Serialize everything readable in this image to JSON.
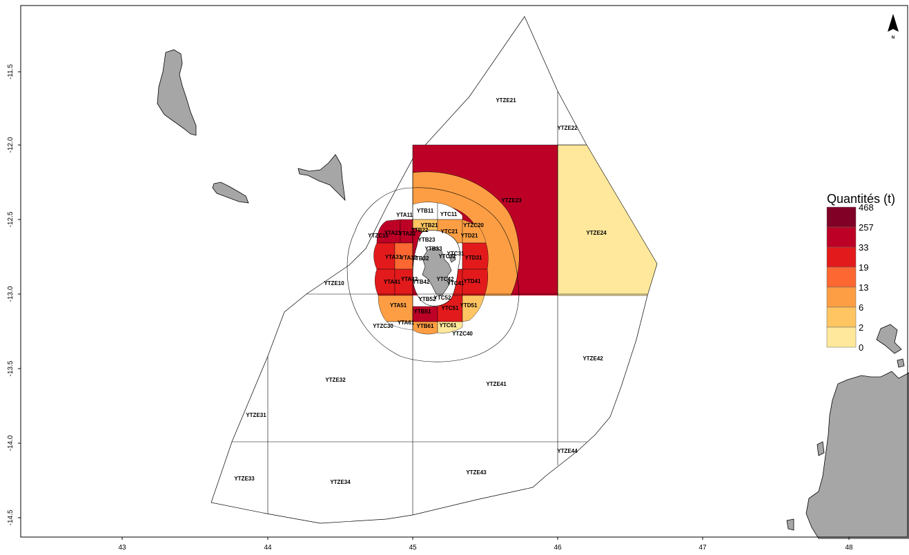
{
  "axes": {
    "x_ticks": [
      "43",
      "44",
      "45",
      "46",
      "47",
      "48"
    ],
    "y_ticks": [
      "-11.5",
      "-12.0",
      "-12.5",
      "-13.0",
      "-13.5",
      "-14.0",
      "-14.5"
    ]
  },
  "north_arrow": {
    "label": "N",
    "icon": "north-arrow-icon"
  },
  "legend": {
    "title": "Quantités (t)",
    "breaks": [
      "468",
      "257",
      "33",
      "19",
      "13",
      "6",
      "2",
      "0"
    ],
    "colors": [
      "#800026",
      "#bd0026",
      "#e31a1c",
      "#fc6732",
      "#fd9e44",
      "#fec562",
      "#ffe89b"
    ]
  },
  "zones": {
    "YTZE21": "YTZE21",
    "YTZE22": "YTZE22",
    "YTZE23": "YTZE23",
    "YTZE24": "YTZE24",
    "YTZE10": "YTZE10",
    "YTZE31": "YTZE31",
    "YTZE32": "YTZE32",
    "YTZE33": "YTZE33",
    "YTZE34": "YTZE34",
    "YTZE41": "YTZE41",
    "YTZE42": "YTZE42",
    "YTZE43": "YTZE43",
    "YTZE44": "YTZE44",
    "YTZC10": "YTZC10",
    "YTZC20": "YTZC20",
    "YTZC30": "YTZC30",
    "YTZC40": "YTZC40",
    "YTA11": "YTA11",
    "YTB11": "YTB11",
    "YTC11": "YTC11",
    "YTA21": "YTA21",
    "YTA22": "YTA22",
    "YTB21": "YTB21",
    "YTB22": "YTB22",
    "YTB23": "YTB23",
    "YTC21": "YTC21",
    "YTD21": "YTD21",
    "YTB33": "YTB33",
    "YTA31": "YTA31",
    "YTA32": "YTA32",
    "YTB32": "YTB32",
    "YTC31": "YTC31",
    "YTC32": "YTC32",
    "YTD31": "YTD31",
    "YTA41": "YTA41",
    "YTA42": "YTA42",
    "YTB42": "YTB42",
    "YTC41": "YTC41",
    "YTC42": "YTC42",
    "YTD41": "YTD41",
    "YTA51": "YTA51",
    "YTB52": "YTB52",
    "YTC52": "YTC52",
    "YTD51": "YTD51",
    "YTB51": "YTB51",
    "YTC51": "YTC51",
    "YTA61": "YTA61",
    "YTB61": "YTB61",
    "YTC61": "YTC61"
  }
}
